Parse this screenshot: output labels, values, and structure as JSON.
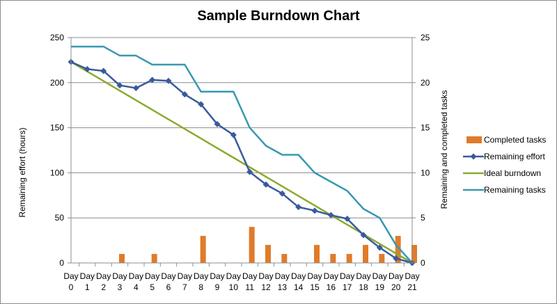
{
  "chart_data": {
    "type": "bar",
    "title": "Sample Burndown Chart",
    "ylabel": "Remaining effort (hours)",
    "y2label": "Remaining and completed tasks",
    "ylim": [
      0,
      250
    ],
    "y2lim": [
      0,
      25
    ],
    "yticks": [
      "0",
      "50",
      "100",
      "150",
      "200",
      "250"
    ],
    "y2ticks": [
      "0",
      "5",
      "10",
      "15",
      "20",
      "25"
    ],
    "categories_prefix": "Day",
    "categories": [
      "0",
      "1",
      "2",
      "3",
      "4",
      "5",
      "6",
      "7",
      "8",
      "9",
      "10",
      "11",
      "12",
      "13",
      "14",
      "15",
      "16",
      "17",
      "18",
      "19",
      "20",
      "21"
    ],
    "legend_position": "right",
    "series": [
      {
        "name": "Completed tasks",
        "type": "bar",
        "axis": "right",
        "color": "#e07b2a",
        "values": [
          0,
          0,
          0,
          1,
          0,
          1,
          0,
          0,
          3,
          0,
          0,
          4,
          2,
          1,
          0,
          2,
          1,
          1,
          2,
          1,
          3,
          2
        ]
      },
      {
        "name": "Remaining effort",
        "type": "line-marker",
        "axis": "left",
        "color": "#3a5a9c",
        "values": [
          223,
          215,
          213,
          197,
          194,
          203,
          202,
          187,
          176,
          154,
          142,
          101,
          87,
          77,
          62,
          58,
          53,
          49,
          31,
          17,
          5,
          0
        ]
      },
      {
        "name": "Ideal burndown",
        "type": "line",
        "axis": "left",
        "color": "#8aaa2f",
        "values": [
          223,
          212.4,
          201.8,
          191.1,
          180.5,
          169.9,
          159.3,
          148.7,
          138.1,
          127.4,
          116.8,
          106.2,
          95.6,
          85,
          74.3,
          63.7,
          53.1,
          42.5,
          31.9,
          21.2,
          10.6,
          0
        ]
      },
      {
        "name": "Remaining tasks",
        "type": "line",
        "axis": "right",
        "color": "#3798b0",
        "values": [
          24,
          24,
          24,
          23,
          23,
          22,
          22,
          22,
          19,
          19,
          19,
          15,
          13,
          12,
          12,
          10,
          9,
          8,
          6,
          5,
          2,
          0
        ]
      }
    ]
  }
}
